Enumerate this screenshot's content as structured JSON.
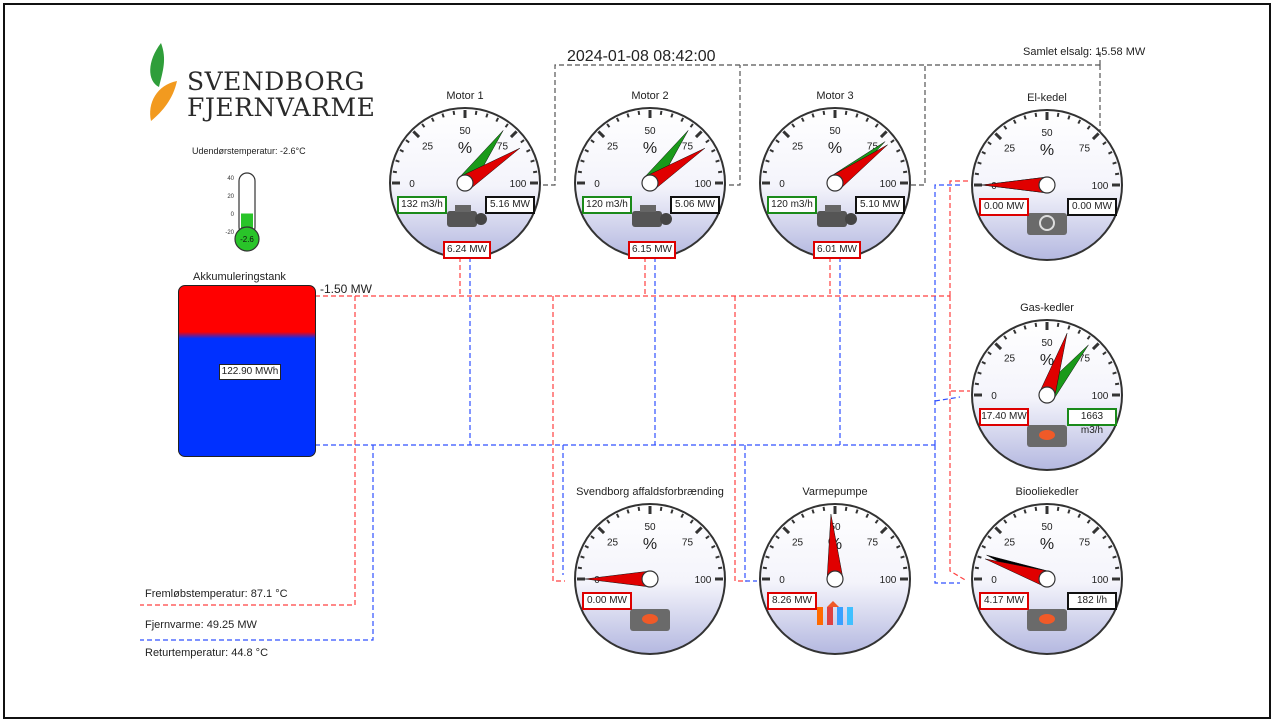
{
  "datetime": "2024-01-08 08:42:00",
  "brand": {
    "line1": "SVENDBORG",
    "line2": "FJERNVARME"
  },
  "outdoor": {
    "label": "Udendørstemperatur: -2.6°C",
    "value": "-2.6",
    "ticks": [
      "40",
      "20",
      "0",
      "-20"
    ],
    "fill_fraction": 0.25
  },
  "sales": {
    "label": "Samlet elsalg: 15.58 MW"
  },
  "tank": {
    "title": "Akkumuleringstank",
    "value": "122.90 MWh",
    "flow": "-1.50 MW",
    "hot_fraction": 0.27
  },
  "summary": {
    "supply_temp": "Fremløbstemperatur: 87.1 °C",
    "district_heat": "Fjernvarme: 49.25 MW",
    "return_temp": "Returtemperatur: 44.8 °C"
  },
  "gauge_labels": {
    "pct": "%",
    "t0": "0",
    "t25": "25",
    "t50": "50",
    "t75": "75",
    "t100": "100"
  },
  "gauges": [
    {
      "id": "motor1",
      "title": "Motor 1",
      "needle_red": 82,
      "needle_green": 70,
      "left": {
        "text": "132 m3/h",
        "color": "g"
      },
      "right": {
        "text": "5.16 MW",
        "color": "k"
      },
      "bottom": {
        "text": "6.24 MW",
        "color": "r"
      },
      "icon": "engine-icon"
    },
    {
      "id": "motor2",
      "title": "Motor 2",
      "needle_red": 82,
      "needle_green": 70,
      "left": {
        "text": "120 m3/h",
        "color": "g"
      },
      "right": {
        "text": "5.06 MW",
        "color": "k"
      },
      "bottom": {
        "text": "6.15 MW",
        "color": "r"
      },
      "icon": "engine-icon"
    },
    {
      "id": "motor3",
      "title": "Motor 3",
      "needle_red": 80,
      "needle_green": 78,
      "left": {
        "text": "120 m3/h",
        "color": "g"
      },
      "right": {
        "text": "5.10 MW",
        "color": "k"
      },
      "bottom": {
        "text": "6.01 MW",
        "color": "r"
      },
      "icon": "engine-icon"
    },
    {
      "id": "elkedel",
      "title": "El-kedel",
      "needle_red": 0,
      "needle_black": 0,
      "left": {
        "text": "0.00 MW",
        "color": "r"
      },
      "right": {
        "text": "0.00 MW",
        "color": "k"
      },
      "icon": "boiler-icon"
    },
    {
      "id": "gas",
      "title": "Gas-kedler",
      "needle_red": 60,
      "needle_green": 72,
      "left": {
        "text": "17.40 MW",
        "color": "r"
      },
      "right": {
        "text": "1663 m3/h",
        "color": "g"
      },
      "icon": "burner-icon"
    },
    {
      "id": "affald",
      "title": "Svendborg affaldsforbrænding",
      "needle_red": 0,
      "left": {
        "text": "0.00 MW",
        "color": "r"
      },
      "icon": "burner-icon"
    },
    {
      "id": "varme",
      "title": "Varmepumpe",
      "needle_red": 48,
      "left": {
        "text": "8.26 MW",
        "color": "r"
      },
      "icon": "heatpump-icon"
    },
    {
      "id": "bio",
      "title": "Biooliekedler",
      "needle_red": 10,
      "needle_black": 12,
      "left": {
        "text": "4.17 MW",
        "color": "r"
      },
      "right": {
        "text": "182 l/h",
        "color": "k"
      },
      "icon": "burner-icon"
    }
  ],
  "colors": {
    "hot": "#ff0000",
    "cold": "#0030ff",
    "gauge_bottom": "#b4b8e0",
    "needle_red": "#e00000",
    "needle_green": "#1a9a1a",
    "needle_black": "#000000"
  }
}
